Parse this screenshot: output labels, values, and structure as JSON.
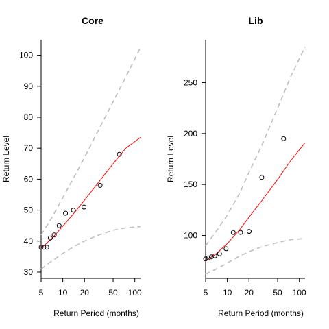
{
  "chart_data": [
    {
      "type": "scatter",
      "title": "Core",
      "xlabel": "Return Period (months)",
      "ylabel": "Return Level",
      "x_scale": "log",
      "xlim": [
        5,
        120
      ],
      "ylim": [
        28,
        105
      ],
      "x_ticks": [
        5,
        10,
        20,
        50,
        100
      ],
      "x_tick_labels": [
        "5",
        "10",
        "20",
        "50",
        "100"
      ],
      "y_ticks": [
        30,
        40,
        50,
        60,
        70,
        80,
        90,
        100
      ],
      "y_tick_labels": [
        "30",
        "40",
        "50",
        "60",
        "70",
        "80",
        "90",
        "100"
      ],
      "grid": false,
      "points": {
        "x": [
          5.0,
          5.45,
          6.0,
          6.7,
          7.6,
          8.9,
          10.9,
          14.0,
          19.7,
          33.0,
          61.0
        ],
        "y": [
          38,
          38,
          38,
          41,
          42,
          45,
          49,
          50,
          51,
          58,
          68
        ]
      },
      "estimate_line": {
        "color": "#ff0000",
        "x": [
          5,
          7,
          10,
          15,
          20,
          30,
          50,
          75,
          120
        ],
        "y": [
          37.7,
          40.8,
          44.8,
          49.6,
          53.2,
          58.4,
          65.0,
          70.0,
          73.5
        ]
      },
      "upper_bound": {
        "color": "#bebebe",
        "x": [
          5,
          7,
          10,
          15,
          20,
          30,
          50,
          75,
          120
        ],
        "y": [
          42.0,
          47.5,
          54.0,
          61.5,
          67.0,
          75.0,
          85.0,
          93.0,
          102.5
        ]
      },
      "lower_bound": {
        "color": "#bebebe",
        "x": [
          5,
          7,
          10,
          15,
          20,
          30,
          50,
          75,
          120
        ],
        "y": [
          31.0,
          33.5,
          36.0,
          38.5,
          40.0,
          41.8,
          43.5,
          44.3,
          44.7
        ]
      }
    },
    {
      "type": "scatter",
      "title": "Lib",
      "xlabel": "Return Period (months)",
      "ylabel": "Return Level",
      "x_scale": "log",
      "xlim": [
        5,
        120
      ],
      "ylim": [
        58,
        292
      ],
      "x_ticks": [
        5,
        10,
        20,
        50,
        100
      ],
      "x_tick_labels": [
        "5",
        "10",
        "20",
        "50",
        "100"
      ],
      "y_ticks": [
        100,
        150,
        200,
        250
      ],
      "y_tick_labels": [
        "100",
        "150",
        "200",
        "250"
      ],
      "grid": false,
      "points": {
        "x": [
          5.0,
          5.45,
          6.0,
          6.7,
          7.8,
          9.6,
          12.1,
          15.3,
          20.1,
          30.1,
          60.5
        ],
        "y": [
          77,
          78,
          79,
          80,
          82,
          87,
          103,
          103,
          104,
          157,
          195
        ]
      },
      "estimate_line": {
        "color": "#ff0000",
        "x": [
          5,
          7,
          10,
          15,
          20,
          30,
          50,
          75,
          120
        ],
        "y": [
          75,
          82,
          92,
          106,
          118,
          134,
          155,
          173,
          191
        ]
      },
      "upper_bound": {
        "color": "#bebebe",
        "x": [
          5,
          7,
          10,
          15,
          20,
          30,
          50,
          75,
          120
        ],
        "y": [
          90,
          104,
          120,
          142,
          162,
          188,
          225,
          255,
          285
        ]
      },
      "lower_bound": {
        "color": "#bebebe",
        "x": [
          5,
          7,
          10,
          15,
          20,
          30,
          50,
          75,
          120
        ],
        "y": [
          62,
          67,
          73,
          80,
          84,
          89,
          93,
          96,
          97
        ]
      }
    }
  ]
}
